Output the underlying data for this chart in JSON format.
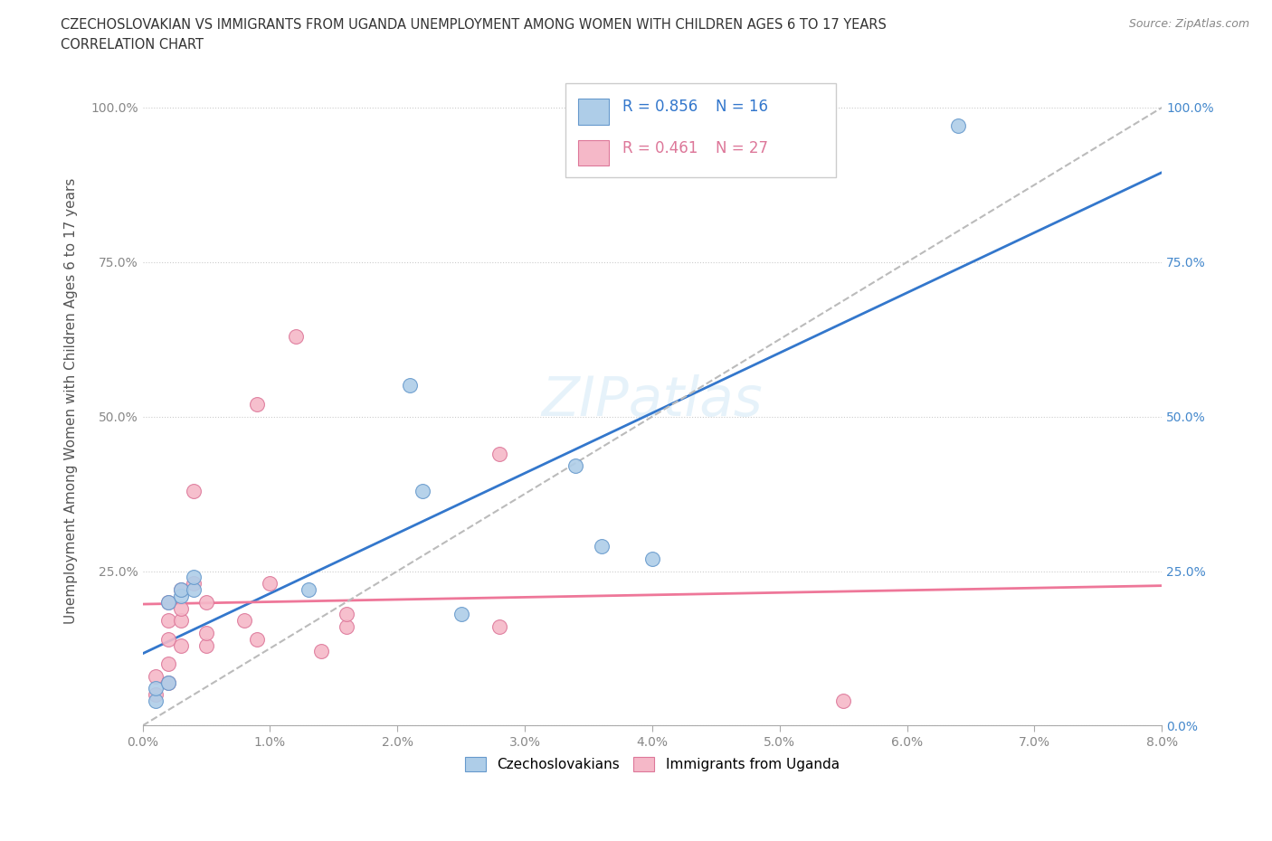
{
  "title_line1": "CZECHOSLOVAKIAN VS IMMIGRANTS FROM UGANDA UNEMPLOYMENT AMONG WOMEN WITH CHILDREN AGES 6 TO 17 YEARS",
  "title_line2": "CORRELATION CHART",
  "source_text": "Source: ZipAtlas.com",
  "ylabel": "Unemployment Among Women with Children Ages 6 to 17 years",
  "xlim": [
    0.0,
    0.08
  ],
  "ylim": [
    0.0,
    1.05
  ],
  "xticks": [
    0.0,
    0.01,
    0.02,
    0.03,
    0.04,
    0.05,
    0.06,
    0.07,
    0.08
  ],
  "xtick_labels": [
    "0.0%",
    "1.0%",
    "2.0%",
    "3.0%",
    "4.0%",
    "5.0%",
    "6.0%",
    "7.0%",
    "8.0%"
  ],
  "yticks": [
    0.0,
    0.25,
    0.5,
    0.75,
    1.0
  ],
  "ytick_labels_left": [
    "",
    "25.0%",
    "50.0%",
    "75.0%",
    "100.0%"
  ],
  "ytick_labels_right": [
    "0.0%",
    "25.0%",
    "50.0%",
    "75.0%",
    "100.0%"
  ],
  "czech_x": [
    0.001,
    0.001,
    0.002,
    0.002,
    0.003,
    0.003,
    0.004,
    0.004,
    0.013,
    0.021,
    0.022,
    0.025,
    0.034,
    0.036,
    0.04,
    0.064
  ],
  "czech_y": [
    0.04,
    0.06,
    0.07,
    0.2,
    0.21,
    0.22,
    0.22,
    0.24,
    0.22,
    0.55,
    0.38,
    0.18,
    0.42,
    0.29,
    0.27,
    0.97
  ],
  "uganda_x": [
    0.001,
    0.001,
    0.002,
    0.002,
    0.002,
    0.002,
    0.002,
    0.003,
    0.003,
    0.003,
    0.003,
    0.004,
    0.004,
    0.005,
    0.005,
    0.005,
    0.008,
    0.009,
    0.009,
    0.01,
    0.012,
    0.014,
    0.016,
    0.016,
    0.028,
    0.028,
    0.055
  ],
  "uganda_y": [
    0.05,
    0.08,
    0.07,
    0.1,
    0.14,
    0.17,
    0.2,
    0.13,
    0.17,
    0.19,
    0.22,
    0.23,
    0.38,
    0.13,
    0.15,
    0.2,
    0.17,
    0.52,
    0.14,
    0.23,
    0.63,
    0.12,
    0.16,
    0.18,
    0.44,
    0.16,
    0.04
  ],
  "czech_color": "#aecde8",
  "uganda_color": "#f5b8c8",
  "czech_edge_color": "#6699cc",
  "uganda_edge_color": "#dd7799",
  "czech_line_color": "#3377cc",
  "uganda_line_color": "#ee7799",
  "dashed_line_color": "#bbbbbb",
  "R_czech": 0.856,
  "N_czech": 16,
  "R_uganda": 0.461,
  "N_uganda": 27,
  "marker_size": 130,
  "background_color": "#ffffff",
  "grid_color": "#cccccc",
  "right_ytick_color": "#4488cc",
  "left_ytick_color": "#888888",
  "title_color": "#333333",
  "source_color": "#888888",
  "ylabel_color": "#555555"
}
